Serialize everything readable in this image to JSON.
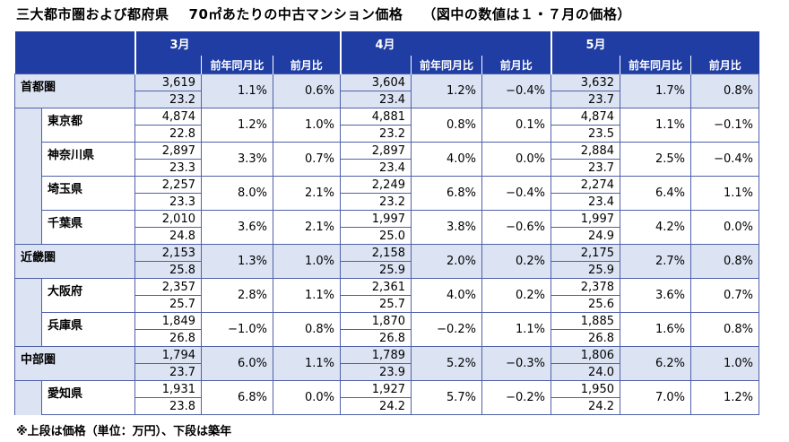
{
  "title": {
    "main": "三大都市圏および都府県",
    "sub": "70㎡あたりの中古マンション価格",
    "note": "（図中の数値は１・７月の価格）"
  },
  "headers": {
    "months": [
      "3月",
      "4月",
      "5月"
    ],
    "yoy": "前年同月比",
    "mom": "前月比"
  },
  "rows": [
    {
      "name": "首都圏",
      "type": "region",
      "data": [
        {
          "price": "3,619",
          "age": "23.2",
          "yoy": "1.1%",
          "mom": "0.6%"
        },
        {
          "price": "3,604",
          "age": "23.4",
          "yoy": "1.2%",
          "mom": "−0.4%"
        },
        {
          "price": "3,632",
          "age": "23.7",
          "yoy": "1.7%",
          "mom": "0.8%"
        }
      ]
    },
    {
      "name": "東京都",
      "type": "pref",
      "data": [
        {
          "price": "4,874",
          "age": "22.8",
          "yoy": "1.2%",
          "mom": "1.0%"
        },
        {
          "price": "4,881",
          "age": "23.2",
          "yoy": "0.8%",
          "mom": "0.1%"
        },
        {
          "price": "4,874",
          "age": "23.5",
          "yoy": "1.1%",
          "mom": "−0.1%"
        }
      ]
    },
    {
      "name": "神奈川県",
      "type": "pref",
      "data": [
        {
          "price": "2,897",
          "age": "23.3",
          "yoy": "3.3%",
          "mom": "0.7%"
        },
        {
          "price": "2,897",
          "age": "23.4",
          "yoy": "4.0%",
          "mom": "0.0%"
        },
        {
          "price": "2,884",
          "age": "23.7",
          "yoy": "2.5%",
          "mom": "−0.4%"
        }
      ]
    },
    {
      "name": "埼玉県",
      "type": "pref",
      "data": [
        {
          "price": "2,257",
          "age": "23.3",
          "yoy": "8.0%",
          "mom": "2.1%"
        },
        {
          "price": "2,249",
          "age": "23.2",
          "yoy": "6.8%",
          "mom": "−0.4%"
        },
        {
          "price": "2,274",
          "age": "23.4",
          "yoy": "6.4%",
          "mom": "1.1%"
        }
      ]
    },
    {
      "name": "千葉県",
      "type": "pref",
      "data": [
        {
          "price": "2,010",
          "age": "24.8",
          "yoy": "3.6%",
          "mom": "2.1%"
        },
        {
          "price": "1,997",
          "age": "25.0",
          "yoy": "3.8%",
          "mom": "−0.6%"
        },
        {
          "price": "1,997",
          "age": "24.9",
          "yoy": "4.2%",
          "mom": "0.0%"
        }
      ]
    },
    {
      "name": "近畿圏",
      "type": "region",
      "data": [
        {
          "price": "2,153",
          "age": "25.8",
          "yoy": "1.3%",
          "mom": "1.0%"
        },
        {
          "price": "2,158",
          "age": "25.9",
          "yoy": "2.0%",
          "mom": "0.2%"
        },
        {
          "price": "2,175",
          "age": "25.9",
          "yoy": "2.7%",
          "mom": "0.8%"
        }
      ]
    },
    {
      "name": "大阪府",
      "type": "pref",
      "data": [
        {
          "price": "2,357",
          "age": "25.7",
          "yoy": "2.8%",
          "mom": "1.1%"
        },
        {
          "price": "2,361",
          "age": "25.7",
          "yoy": "4.0%",
          "mom": "0.2%"
        },
        {
          "price": "2,378",
          "age": "25.6",
          "yoy": "3.6%",
          "mom": "0.7%"
        }
      ]
    },
    {
      "name": "兵庫県",
      "type": "pref",
      "data": [
        {
          "price": "1,849",
          "age": "26.8",
          "yoy": "−1.0%",
          "mom": "0.8%"
        },
        {
          "price": "1,870",
          "age": "26.8",
          "yoy": "−0.2%",
          "mom": "1.1%"
        },
        {
          "price": "1,885",
          "age": "26.8",
          "yoy": "1.6%",
          "mom": "0.8%"
        }
      ]
    },
    {
      "name": "中部圏",
      "type": "region",
      "data": [
        {
          "price": "1,794",
          "age": "23.7",
          "yoy": "6.0%",
          "mom": "1.1%"
        },
        {
          "price": "1,789",
          "age": "23.9",
          "yoy": "5.2%",
          "mom": "−0.3%"
        },
        {
          "price": "1,806",
          "age": "24.0",
          "yoy": "6.2%",
          "mom": "1.0%"
        }
      ]
    },
    {
      "name": "愛知県",
      "type": "pref",
      "data": [
        {
          "price": "1,931",
          "age": "23.8",
          "yoy": "6.8%",
          "mom": "0.0%"
        },
        {
          "price": "1,927",
          "age": "24.2",
          "yoy": "5.7%",
          "mom": "−0.2%"
        },
        {
          "price": "1,950",
          "age": "24.2",
          "yoy": "7.0%",
          "mom": "1.2%"
        }
      ]
    }
  ],
  "footnote": "※上段は価格（単位：万円）、下段は築年",
  "colors": {
    "header": "#1f3da3",
    "region_bg": "#dce4f4",
    "border": "#5060a8"
  }
}
